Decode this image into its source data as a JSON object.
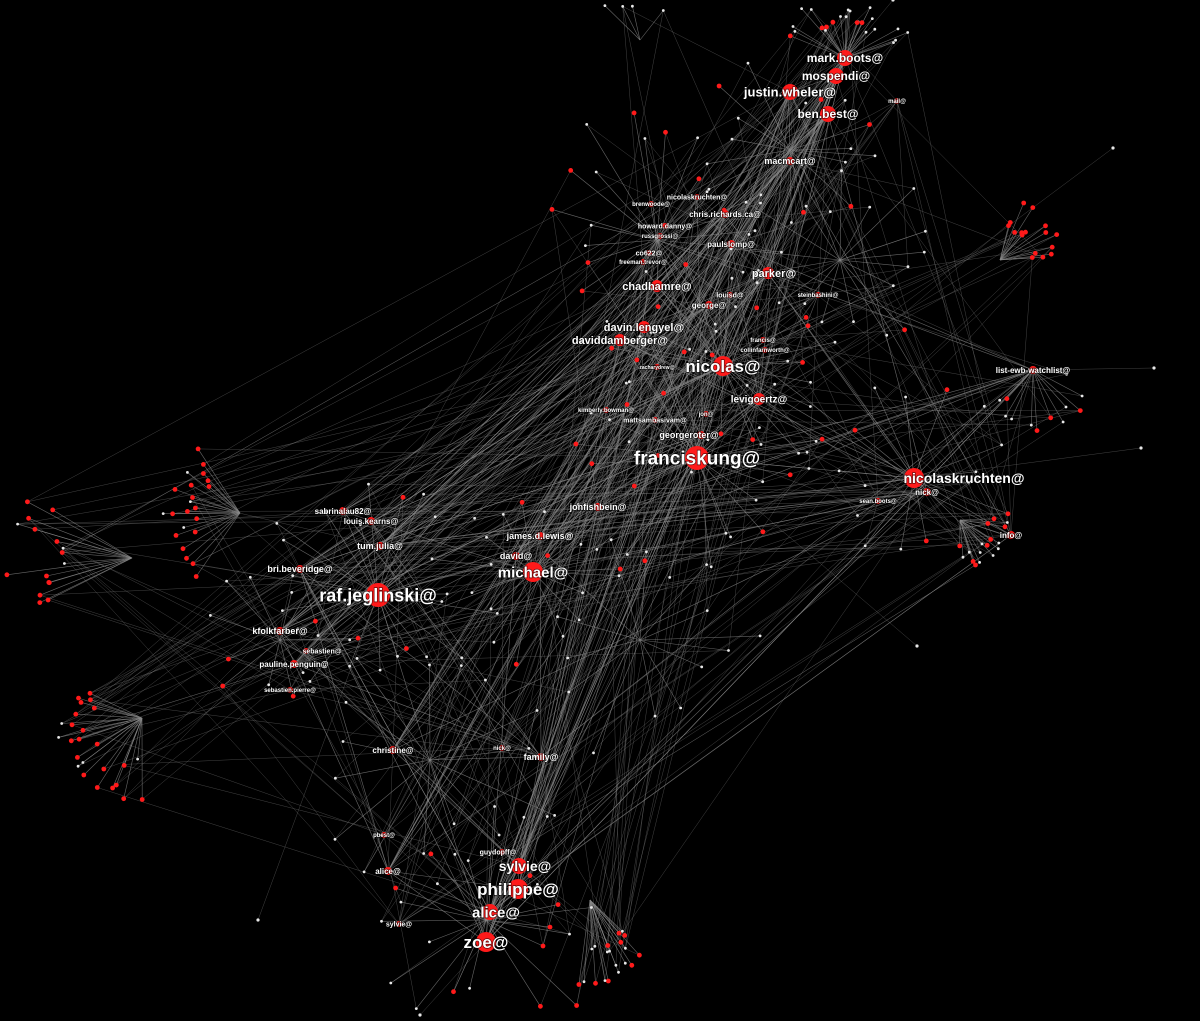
{
  "graph": {
    "background": "#000000",
    "node_color": "#ff1a1a",
    "minor_node_color": "#e8e8e8",
    "edge_color": "#8a8a8a",
    "label_color": "#ffffff",
    "nodes": [
      {
        "id": "franciskung",
        "label": "franciskung@",
        "size": 5
      },
      {
        "id": "nicolas",
        "label": "nicolas@",
        "size": 4
      },
      {
        "id": "raf",
        "label": "raf.jeglinski@",
        "size": 5
      },
      {
        "id": "philippe",
        "label": "philippe@",
        "size": 4
      },
      {
        "id": "zoe",
        "label": "zoe@",
        "size": 4
      },
      {
        "id": "nicolaskruchten",
        "label": "nicolaskruchten@",
        "size": 4
      },
      {
        "id": "michael",
        "label": "michael@",
        "size": 4
      },
      {
        "id": "alice1",
        "label": "alice@",
        "size": 3
      },
      {
        "id": "sylvie1",
        "label": "sylvie@",
        "size": 3
      },
      {
        "id": "justin",
        "label": "justin.wheler@",
        "size": 3
      },
      {
        "id": "markboots",
        "label": "mark.boots@",
        "size": 3
      },
      {
        "id": "mospendi",
        "label": "mospendi@",
        "size": 3
      },
      {
        "id": "benbest",
        "label": "ben.best@",
        "size": 3
      },
      {
        "id": "davin",
        "label": "davin.lengyel@",
        "size": 2
      },
      {
        "id": "daviddamberger",
        "label": "daviddamberger@",
        "size": 2
      },
      {
        "id": "chadhamre",
        "label": "chadhamre@",
        "size": 2
      },
      {
        "id": "parker",
        "label": "parker@",
        "size": 2
      },
      {
        "id": "levigoertz",
        "label": "levigoertz@",
        "size": 2
      },
      {
        "id": "georgeroter",
        "label": "georgeroter@",
        "size": 1
      },
      {
        "id": "jonfishbein",
        "label": "jonfishbein@",
        "size": 1
      },
      {
        "id": "james",
        "label": "james.d.lewis@",
        "size": 1
      },
      {
        "id": "david",
        "label": "david@",
        "size": 1
      },
      {
        "id": "tumjulia",
        "label": "tum.julia@",
        "size": 1
      },
      {
        "id": "bribeveridge",
        "label": "bri.beveridge@",
        "size": 1
      },
      {
        "id": "kfolkfarber",
        "label": "kfolkfarber@",
        "size": 1
      },
      {
        "id": "sabrina",
        "label": "sabrinalau82@",
        "size": 1
      },
      {
        "id": "louiskearns",
        "label": "louis.kearns@",
        "size": 1
      },
      {
        "id": "sebastien",
        "label": "sebastien@",
        "size": 0
      },
      {
        "id": "pauline",
        "label": "pauline.penguin@",
        "size": 1
      },
      {
        "id": "sebpierre",
        "label": "sebastien.pierre@",
        "size": 0
      },
      {
        "id": "christine",
        "label": "christine@",
        "size": 1
      },
      {
        "id": "nick2",
        "label": "nick@",
        "size": 0
      },
      {
        "id": "family",
        "label": "family@",
        "size": 1
      },
      {
        "id": "guydopff",
        "label": "guydopff@",
        "size": 0
      },
      {
        "id": "alice2",
        "label": "alice@",
        "size": 1
      },
      {
        "id": "sylvie2",
        "label": "sylvie@",
        "size": 0
      },
      {
        "id": "pbest",
        "label": "pbest@",
        "size": 0
      },
      {
        "id": "macmcart",
        "label": "macmcart@",
        "size": 1
      },
      {
        "id": "listewb",
        "label": "list-ewb-watchlist@",
        "size": 1
      },
      {
        "id": "nick1",
        "label": "nick@",
        "size": 1
      },
      {
        "id": "seanboots",
        "label": "sean.boots@",
        "size": 0
      },
      {
        "id": "info",
        "label": "info@",
        "size": 1
      },
      {
        "id": "nicolaskruchten2",
        "label": "nicolaskruchten@",
        "size": 0
      },
      {
        "id": "chrisrichards",
        "label": "chris.richards.ca@",
        "size": 1
      },
      {
        "id": "howard",
        "label": "howard.danny@",
        "size": 0
      },
      {
        "id": "russ",
        "label": "russgrossi@",
        "size": 0
      },
      {
        "id": "co622",
        "label": "co622@",
        "size": 0
      },
      {
        "id": "freeman",
        "label": "freeman.trevor@",
        "size": 0
      },
      {
        "id": "paulslomp",
        "label": "paulslomp@",
        "size": 1
      },
      {
        "id": "louisd",
        "label": "louisd@",
        "size": 0
      },
      {
        "id": "george",
        "label": "george@",
        "size": 1
      },
      {
        "id": "steinbashini",
        "label": "steinbashini@",
        "size": 0
      },
      {
        "id": "collin",
        "label": "collinfarnworth@",
        "size": 0
      },
      {
        "id": "francis",
        "label": "francis@",
        "size": 0
      },
      {
        "id": "kimberly",
        "label": "kimberly.bowman@",
        "size": 0
      },
      {
        "id": "matts",
        "label": "mattsambasivam@",
        "size": 0
      },
      {
        "id": "jon",
        "label": "jon@",
        "size": 0
      },
      {
        "id": "brenwoode",
        "label": "brenwoode@",
        "size": 0
      },
      {
        "id": "mail",
        "label": "mail@",
        "size": 0
      },
      {
        "id": "zachary",
        "label": "zacharydrew@",
        "size": 0
      }
    ]
  }
}
